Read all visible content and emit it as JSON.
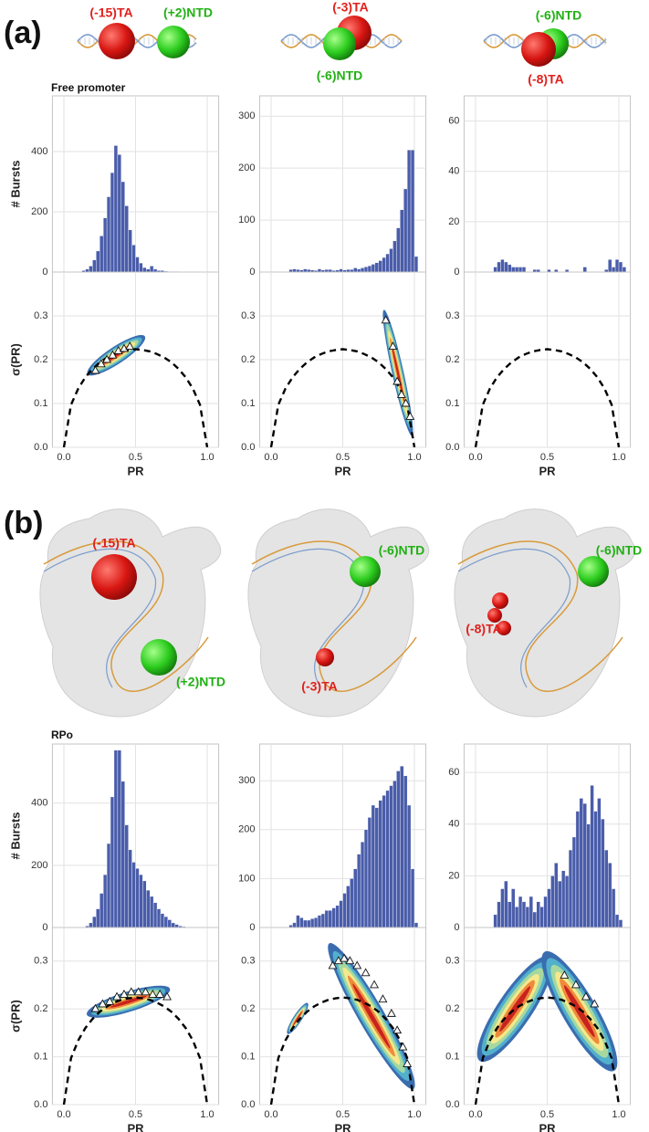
{
  "panels": [
    {
      "label": "(a)",
      "condition": "Free promoter",
      "columns": [
        {
          "labels": [
            "(-15)TA",
            "(+2)NTD"
          ]
        },
        {
          "labels": [
            "(-3)TA",
            "(-6)NTD"
          ]
        },
        {
          "labels": [
            "(-6)NTD",
            "(-8)TA"
          ]
        }
      ]
    },
    {
      "label": "(b)",
      "condition": "RPo",
      "columns": [
        {
          "labels": [
            "(-15)TA",
            "(+2)NTD"
          ]
        },
        {
          "labels": [
            "(-6)NTD",
            "(-3)TA"
          ]
        },
        {
          "labels": [
            "(-8)TA",
            "(-6)NTD"
          ]
        }
      ]
    }
  ],
  "shot_noise": {
    "x": [
      0,
      0.05,
      0.1,
      0.15,
      0.2,
      0.25,
      0.3,
      0.35,
      0.4,
      0.45,
      0.5,
      0.55,
      0.6,
      0.65,
      0.7,
      0.75,
      0.8,
      0.85,
      0.9,
      0.95,
      1
    ],
    "values": [
      0,
      0.097,
      0.134,
      0.16,
      0.179,
      0.194,
      0.205,
      0.213,
      0.219,
      0.222,
      0.224,
      0.222,
      0.219,
      0.213,
      0.205,
      0.194,
      0.179,
      0.16,
      0.134,
      0.097,
      0
    ],
    "color": "#000000"
  },
  "chart_data": [
    {
      "type": "histogram",
      "ylabel": "# Bursts",
      "color": "#4a5daa",
      "xlim": [
        -0.08,
        1.08
      ],
      "xticks": [
        0,
        0.5,
        1
      ],
      "ylim": [
        0,
        585
      ],
      "yticks": [
        0,
        200,
        400
      ],
      "bins": [
        0.05,
        0.075,
        0.1,
        0.125,
        0.15,
        0.175,
        0.2,
        0.225,
        0.25,
        0.275,
        0.3,
        0.325,
        0.35,
        0.375,
        0.4,
        0.425,
        0.45,
        0.475,
        0.5,
        0.525,
        0.55,
        0.575,
        0.6,
        0.625,
        0.65,
        0.675,
        0.7,
        0.725,
        0.75,
        0.775,
        0.8,
        0.825,
        0.85,
        0.875,
        0.9,
        0.925,
        0.95,
        0.975,
        1.0,
        1.025,
        1.05
      ],
      "counts": [
        0,
        0,
        0,
        5,
        10,
        20,
        40,
        70,
        120,
        180,
        250,
        330,
        420,
        390,
        300,
        220,
        140,
        90,
        50,
        30,
        15,
        10,
        20,
        10,
        5,
        5,
        3,
        2,
        2,
        2,
        1,
        0,
        0,
        0,
        0,
        0,
        0,
        0,
        0,
        0
      ]
    },
    {
      "type": "histogram",
      "color": "#4a5daa",
      "xlim": [
        -0.08,
        1.08
      ],
      "xticks": [
        0,
        0.5,
        1
      ],
      "ylim": [
        0,
        339
      ],
      "yticks": [
        0,
        100,
        200,
        300
      ],
      "bins": [
        0.05,
        0.075,
        0.1,
        0.125,
        0.15,
        0.175,
        0.2,
        0.225,
        0.25,
        0.275,
        0.3,
        0.325,
        0.35,
        0.375,
        0.4,
        0.425,
        0.45,
        0.475,
        0.5,
        0.525,
        0.55,
        0.575,
        0.6,
        0.625,
        0.65,
        0.675,
        0.7,
        0.725,
        0.75,
        0.775,
        0.8,
        0.825,
        0.85,
        0.875,
        0.9,
        0.925,
        0.95,
        0.975,
        1.0,
        1.025,
        1.05
      ],
      "counts": [
        0,
        0,
        0,
        5,
        6,
        5,
        4,
        6,
        5,
        4,
        3,
        6,
        4,
        5,
        5,
        3,
        4,
        6,
        4,
        5,
        5,
        8,
        6,
        8,
        10,
        12,
        15,
        18,
        22,
        28,
        35,
        45,
        60,
        85,
        120,
        160,
        235,
        235,
        30,
        0
      ]
    },
    {
      "type": "histogram",
      "color": "#4a5daa",
      "xlim": [
        -0.08,
        1.08
      ],
      "xticks": [
        0,
        0.5,
        1
      ],
      "ylim": [
        0,
        70
      ],
      "yticks": [
        0,
        20,
        40,
        60
      ],
      "bins": [
        0.05,
        0.075,
        0.1,
        0.125,
        0.15,
        0.175,
        0.2,
        0.225,
        0.25,
        0.275,
        0.3,
        0.325,
        0.35,
        0.375,
        0.4,
        0.425,
        0.45,
        0.475,
        0.5,
        0.525,
        0.55,
        0.575,
        0.6,
        0.625,
        0.65,
        0.675,
        0.7,
        0.725,
        0.75,
        0.775,
        0.8,
        0.825,
        0.85,
        0.875,
        0.9,
        0.925,
        0.95,
        0.975,
        1.0,
        1.025,
        1.05
      ],
      "counts": [
        0,
        0,
        0,
        2,
        4,
        5,
        4,
        3,
        2,
        2,
        2,
        2,
        0,
        0,
        1,
        1,
        0,
        0,
        1,
        0,
        1,
        0,
        0,
        1,
        0,
        0,
        0,
        0,
        2,
        0,
        0,
        0,
        0,
        0,
        1,
        5,
        2,
        5,
        4,
        2
      ]
    },
    {
      "type": "contour",
      "ylabel": "σ(PR)",
      "xlabel": "PR",
      "xlim": [
        -0.08,
        1.08
      ],
      "xticks": [
        {
          "value": 0,
          "label": "0.0"
        },
        0.5,
        {
          "value": 1,
          "label": "1.0"
        }
      ],
      "ylim": [
        0,
        0.4
      ],
      "yticks": [
        {
          "value": 0,
          "label": "0.0"
        },
        0.1,
        0.2,
        0.3
      ],
      "colormap": [
        "#3a6db0",
        "#52b0cc",
        "#a6d8a0",
        "#f4e98c",
        "#ef8a3c",
        "#c8231e"
      ],
      "density": [
        {
          "from": [
            0.18,
            0.17
          ],
          "to": [
            0.55,
            0.25
          ],
          "width": 0.06
        }
      ],
      "x": [
        0.22,
        0.26,
        0.3,
        0.34,
        0.38,
        0.42,
        0.46
      ],
      "values": [
        0.175,
        0.19,
        0.2,
        0.21,
        0.22,
        0.225,
        0.23
      ]
    },
    {
      "type": "contour",
      "xlabel": "PR",
      "xlim": [
        -0.08,
        1.08
      ],
      "xticks": [
        {
          "value": 0,
          "label": "0.0"
        },
        0.5,
        {
          "value": 1,
          "label": "1.0"
        }
      ],
      "ylim": [
        0,
        0.4
      ],
      "yticks": [
        {
          "value": 0,
          "label": "0.0"
        },
        0.1,
        0.2,
        0.3
      ],
      "colormap": [
        "#3a6db0",
        "#52b0cc",
        "#a6d8a0",
        "#f4e98c",
        "#ef8a3c",
        "#c8231e"
      ],
      "density": [
        {
          "from": [
            0.79,
            0.31
          ],
          "to": [
            0.98,
            0.03
          ],
          "width": 0.04
        }
      ],
      "x": [
        0.8,
        0.85,
        0.88,
        0.91,
        0.94,
        0.97
      ],
      "values": [
        0.29,
        0.23,
        0.15,
        0.12,
        0.1,
        0.07
      ]
    },
    {
      "type": "contour",
      "xlabel": "PR",
      "xlim": [
        -0.08,
        1.08
      ],
      "xticks": [
        {
          "value": 0,
          "label": "0.0"
        },
        0.5,
        {
          "value": 1,
          "label": "1.0"
        }
      ],
      "ylim": [
        0,
        0.4
      ],
      "yticks": [
        {
          "value": 0,
          "label": "0.0"
        },
        0.1,
        0.2,
        0.3
      ],
      "colormap": [
        "#3a6db0",
        "#52b0cc",
        "#a6d8a0",
        "#f4e98c",
        "#ef8a3c",
        "#c8231e"
      ],
      "density": [],
      "x": [],
      "values": []
    },
    {
      "type": "histogram",
      "ylabel": "# Bursts",
      "color": "#4a5daa",
      "xlim": [
        -0.08,
        1.08
      ],
      "xticks": [
        0,
        0.5,
        1
      ],
      "ylim": [
        0,
        590
      ],
      "yticks": [
        0,
        200,
        400
      ],
      "bins": [
        0.05,
        0.075,
        0.1,
        0.125,
        0.15,
        0.175,
        0.2,
        0.225,
        0.25,
        0.275,
        0.3,
        0.325,
        0.35,
        0.375,
        0.4,
        0.425,
        0.45,
        0.475,
        0.5,
        0.525,
        0.55,
        0.575,
        0.6,
        0.625,
        0.65,
        0.675,
        0.7,
        0.725,
        0.75,
        0.775,
        0.8,
        0.825,
        0.85,
        0.875,
        0.9,
        0.925,
        0.95,
        0.975,
        1.0,
        1.025,
        1.05
      ],
      "counts": [
        0,
        0,
        0,
        0,
        5,
        15,
        35,
        60,
        110,
        170,
        270,
        420,
        570,
        570,
        470,
        330,
        250,
        210,
        190,
        170,
        150,
        120,
        100,
        80,
        60,
        45,
        35,
        25,
        15,
        10,
        5,
        3,
        0,
        0,
        0,
        0,
        0,
        0,
        0,
        0
      ]
    },
    {
      "type": "histogram",
      "color": "#4a5daa",
      "xlim": [
        -0.08,
        1.08
      ],
      "xticks": [
        0,
        0.5,
        1
      ],
      "ylim": [
        0,
        375
      ],
      "yticks": [
        0,
        100,
        200,
        300
      ],
      "bins": [
        0.05,
        0.075,
        0.1,
        0.125,
        0.15,
        0.175,
        0.2,
        0.225,
        0.25,
        0.275,
        0.3,
        0.325,
        0.35,
        0.375,
        0.4,
        0.425,
        0.45,
        0.475,
        0.5,
        0.525,
        0.55,
        0.575,
        0.6,
        0.625,
        0.65,
        0.675,
        0.7,
        0.725,
        0.75,
        0.775,
        0.8,
        0.825,
        0.85,
        0.875,
        0.9,
        0.925,
        0.95,
        0.975,
        1.0,
        1.025,
        1.05
      ],
      "counts": [
        0,
        0,
        0,
        5,
        10,
        25,
        20,
        15,
        15,
        18,
        20,
        25,
        28,
        35,
        35,
        40,
        45,
        55,
        70,
        85,
        100,
        120,
        150,
        175,
        200,
        225,
        250,
        245,
        260,
        270,
        280,
        290,
        300,
        320,
        330,
        310,
        250,
        120,
        10,
        0
      ]
    },
    {
      "type": "histogram",
      "color": "#4a5daa",
      "xlim": [
        -0.08,
        1.08
      ],
      "xticks": [
        0,
        0.5,
        1
      ],
      "ylim": [
        0,
        71
      ],
      "yticks": [
        0,
        20,
        40,
        60
      ],
      "bins": [
        0.05,
        0.075,
        0.1,
        0.125,
        0.15,
        0.175,
        0.2,
        0.225,
        0.25,
        0.275,
        0.3,
        0.325,
        0.35,
        0.375,
        0.4,
        0.425,
        0.45,
        0.475,
        0.5,
        0.525,
        0.55,
        0.575,
        0.6,
        0.625,
        0.65,
        0.675,
        0.7,
        0.725,
        0.75,
        0.775,
        0.8,
        0.825,
        0.85,
        0.875,
        0.9,
        0.925,
        0.95,
        0.975,
        1.0,
        1.025,
        1.05
      ],
      "counts": [
        0,
        0,
        0,
        5,
        10,
        15,
        18,
        10,
        15,
        8,
        12,
        10,
        8,
        12,
        6,
        10,
        8,
        12,
        15,
        20,
        25,
        18,
        22,
        20,
        30,
        35,
        45,
        50,
        48,
        40,
        55,
        45,
        50,
        42,
        30,
        25,
        15,
        5,
        3,
        0
      ]
    },
    {
      "type": "contour",
      "ylabel": "σ(PR)",
      "xlabel": "PR",
      "xlim": [
        -0.08,
        1.08
      ],
      "xticks": [
        {
          "value": 0,
          "label": "0.0"
        },
        0.5,
        {
          "value": 1,
          "label": "1.0"
        }
      ],
      "ylim": [
        0,
        0.37
      ],
      "yticks": [
        {
          "value": 0,
          "label": "0.0"
        },
        0.1,
        0.2,
        0.3
      ],
      "colormap": [
        "#3a6db0",
        "#52b0cc",
        "#a6d8a0",
        "#f4e98c",
        "#ef8a3c",
        "#c8231e"
      ],
      "density": [
        {
          "from": [
            0.18,
            0.19
          ],
          "to": [
            0.72,
            0.24
          ],
          "width": 0.07
        }
      ],
      "x": [
        0.22,
        0.27,
        0.32,
        0.37,
        0.42,
        0.47,
        0.52,
        0.57,
        0.62,
        0.67,
        0.72
      ],
      "values": [
        0.2,
        0.21,
        0.215,
        0.225,
        0.23,
        0.235,
        0.235,
        0.235,
        0.23,
        0.23,
        0.225
      ]
    },
    {
      "type": "contour",
      "xlabel": "PR",
      "xlim": [
        -0.08,
        1.08
      ],
      "xticks": [
        {
          "value": 0,
          "label": "0.0"
        },
        0.5,
        {
          "value": 1,
          "label": "1.0"
        }
      ],
      "ylim": [
        0,
        0.37
      ],
      "yticks": [
        {
          "value": 0,
          "label": "0.0"
        },
        0.1,
        0.2,
        0.3
      ],
      "colormap": [
        "#3a6db0",
        "#52b0cc",
        "#a6d8a0",
        "#f4e98c",
        "#ef8a3c",
        "#c8231e"
      ],
      "density": [
        {
          "from": [
            0.42,
            0.33
          ],
          "to": [
            0.98,
            0.04
          ],
          "width": 0.09
        },
        {
          "from": [
            0.12,
            0.15
          ],
          "to": [
            0.25,
            0.21
          ],
          "width": 0.03
        }
      ],
      "x": [
        0.43,
        0.47,
        0.51,
        0.55,
        0.6,
        0.66,
        0.72,
        0.78,
        0.84,
        0.88,
        0.92,
        0.95
      ],
      "values": [
        0.29,
        0.3,
        0.305,
        0.3,
        0.29,
        0.275,
        0.25,
        0.22,
        0.19,
        0.155,
        0.12,
        0.085
      ]
    },
    {
      "type": "contour",
      "xlabel": "PR",
      "xlim": [
        -0.08,
        1.08
      ],
      "xticks": [
        {
          "value": 0,
          "label": "0.0"
        },
        0.5,
        {
          "value": 1,
          "label": "1.0"
        }
      ],
      "ylim": [
        0,
        0.37
      ],
      "yticks": [
        {
          "value": 0,
          "label": "0.0"
        },
        0.1,
        0.2,
        0.3
      ],
      "colormap": [
        "#3a6db0",
        "#52b0cc",
        "#a6d8a0",
        "#f4e98c",
        "#ef8a3c",
        "#c8231e"
      ],
      "density": [
        {
          "from": [
            0.05,
            0.1
          ],
          "to": [
            0.5,
            0.3
          ],
          "width": 0.12
        },
        {
          "from": [
            0.5,
            0.31
          ],
          "to": [
            0.95,
            0.08
          ],
          "width": 0.12
        }
      ],
      "x": [
        0.62,
        0.7,
        0.77,
        0.83
      ],
      "values": [
        0.27,
        0.25,
        0.225,
        0.21
      ]
    }
  ]
}
